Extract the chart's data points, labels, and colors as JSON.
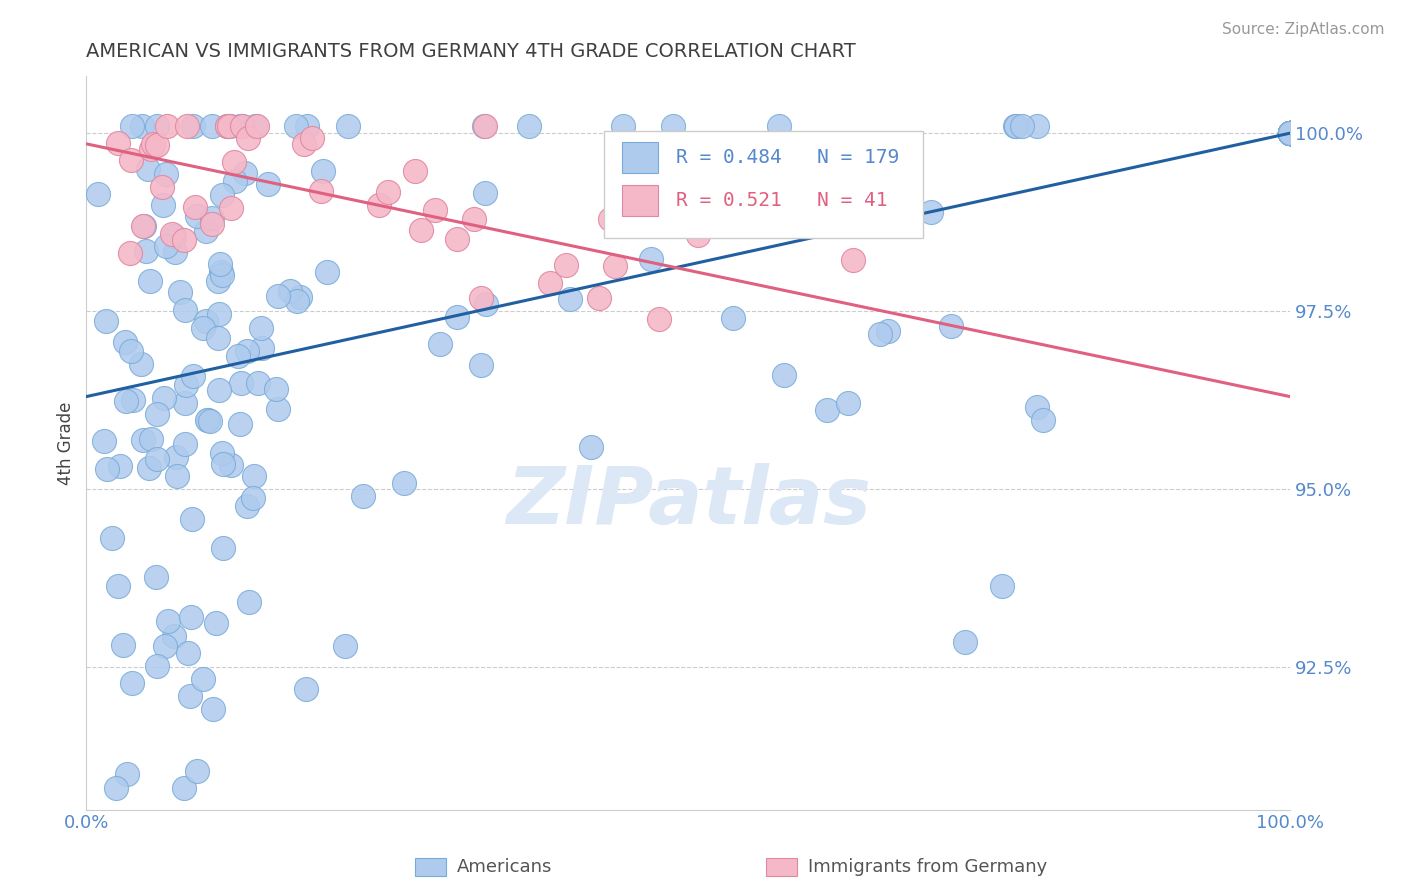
{
  "title": "AMERICAN VS IMMIGRANTS FROM GERMANY 4TH GRADE CORRELATION CHART",
  "source": "Source: ZipAtlas.com",
  "ylabel": "4th Grade",
  "xlim": [
    0.0,
    1.0
  ],
  "ylim": [
    0.905,
    1.008
  ],
  "yticks": [
    0.925,
    0.95,
    0.975,
    1.0
  ],
  "ytick_labels": [
    "92.5%",
    "95.0%",
    "97.5%",
    "100.0%"
  ],
  "xticks": [
    0.0,
    0.25,
    0.5,
    0.75,
    1.0
  ],
  "xtick_labels": [
    "0.0%",
    "",
    "",
    "",
    "100.0%"
  ],
  "blue_R": 0.484,
  "blue_N": 179,
  "pink_R": 0.521,
  "pink_N": 41,
  "blue_color": "#aecbee",
  "blue_edge_color": "#7aabd8",
  "blue_line_color": "#2060a0",
  "pink_color": "#f5b8c8",
  "pink_edge_color": "#e088a0",
  "pink_line_color": "#e06080",
  "axis_label_color": "#444444",
  "axis_tick_color": "#5588cc",
  "grid_color": "#cccccc",
  "watermark_color": "#dce8f5",
  "legend_blue_text": "Americans",
  "legend_pink_text": "Immigrants from Germany",
  "legend_r_color": "#5588cc",
  "legend_pink_r_color": "#e06080",
  "figsize": [
    14.06,
    8.92
  ],
  "blue_trend_y_start": 0.963,
  "blue_trend_y_end": 1.0,
  "pink_trend_y_start": 0.9985,
  "pink_trend_y_end": 0.963
}
